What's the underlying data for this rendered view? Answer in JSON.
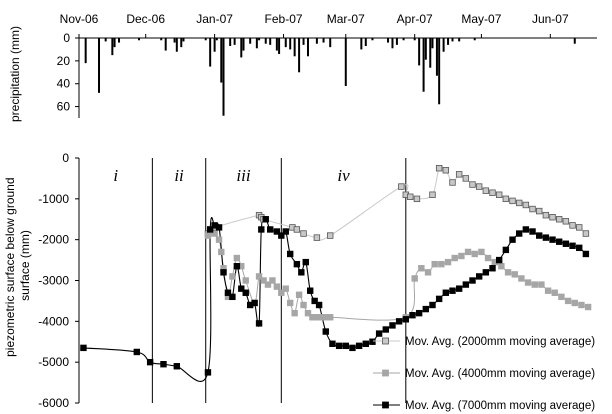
{
  "chart_data": [
    {
      "type": "bar",
      "ylabel": "precipitation (mm)",
      "ylim": [
        0,
        70
      ],
      "y_inverted": true,
      "yticks": [
        "0",
        "20",
        "40",
        "60"
      ],
      "x_months": [
        "Nov-06",
        "Dec-06",
        "Jan-07",
        "Feb-07",
        "Mar-07",
        "Apr-07",
        "May-07",
        "Jun-07"
      ],
      "xlim": [
        "2006-11-01",
        "2007-06-22"
      ],
      "grid": false,
      "bars": {
        "dates": [
          "2006-11-04",
          "2006-11-10",
          "2006-11-13",
          "2006-11-16",
          "2006-11-17",
          "2006-11-19",
          "2006-11-28",
          "2006-12-08",
          "2006-12-10",
          "2006-12-14",
          "2006-12-15",
          "2006-12-17",
          "2006-12-18",
          "2006-12-28",
          "2006-12-30",
          "2007-01-01",
          "2007-01-02",
          "2007-01-04",
          "2007-01-05",
          "2007-01-08",
          "2007-01-10",
          "2007-01-13",
          "2007-01-14",
          "2007-01-17",
          "2007-01-20",
          "2007-01-21",
          "2007-01-24",
          "2007-01-26",
          "2007-01-29",
          "2007-01-30",
          "2007-02-02",
          "2007-02-04",
          "2007-02-06",
          "2007-02-08",
          "2007-02-10",
          "2007-02-12",
          "2007-02-16",
          "2007-02-19",
          "2007-02-22",
          "2007-03-01",
          "2007-03-08",
          "2007-03-10",
          "2007-03-13",
          "2007-03-20",
          "2007-03-22",
          "2007-03-24",
          "2007-03-27",
          "2007-04-01",
          "2007-04-03",
          "2007-04-05",
          "2007-04-06",
          "2007-04-08",
          "2007-04-09",
          "2007-04-11",
          "2007-04-12",
          "2007-04-14",
          "2007-04-16",
          "2007-04-18",
          "2007-04-21",
          "2007-04-28",
          "2007-06-12"
        ],
        "values": [
          22,
          48,
          3,
          15,
          8,
          4,
          2,
          2,
          11,
          4,
          12,
          8,
          3,
          2,
          25,
          12,
          2,
          39,
          68,
          7,
          6,
          17,
          11,
          5,
          9,
          2,
          5,
          6,
          11,
          14,
          8,
          10,
          16,
          30,
          6,
          16,
          5,
          4,
          8,
          42,
          10,
          7,
          2,
          4,
          9,
          6,
          2,
          2,
          24,
          47,
          19,
          26,
          9,
          33,
          58,
          12,
          6,
          3,
          3,
          2,
          5
        ]
      }
    },
    {
      "type": "scatter",
      "ylabel": "piezometric  surface below ground surface (mm)",
      "ylim": [
        -6000,
        0
      ],
      "yticks": [
        "0",
        "-1000",
        "-2000",
        "-3000",
        "-4000",
        "-5000",
        "-6000"
      ],
      "xlim": [
        "2006-11-01",
        "2007-06-22"
      ],
      "grid": false,
      "periods": [
        {
          "label": "i",
          "start": "2006-11-01",
          "end": "2006-12-04"
        },
        {
          "label": "ii",
          "start": "2006-12-04",
          "end": "2006-12-28"
        },
        {
          "label": "iii",
          "start": "2006-12-28",
          "end": "2007-01-31"
        },
        {
          "label": "iv",
          "start": "2007-01-31",
          "end": "2007-03-28"
        }
      ],
      "legend": [
        "Mov. Avg. (2000mm moving average)",
        "Mov. Avg. (4000mm moving average)",
        "Mov. Avg. (7000mm moving average)"
      ],
      "legend_position": "bottom-right",
      "series": [
        {
          "color": "#c8c8c8",
          "edge": "#555555",
          "line_color": "#c8c8c8",
          "x": [
            "2006-12-29",
            "2006-12-30",
            "2007-01-01",
            "2007-01-21",
            "2007-01-22",
            "2007-01-23",
            "2007-02-05",
            "2007-02-07",
            "2007-02-10",
            "2007-02-16",
            "2007-02-22",
            "2007-03-26",
            "2007-03-28",
            "2007-03-30",
            "2007-04-02",
            "2007-04-09",
            "2007-04-12",
            "2007-04-15",
            "2007-04-18",
            "2007-04-21",
            "2007-04-24",
            "2007-04-27",
            "2007-04-30",
            "2007-05-03",
            "2007-05-06",
            "2007-05-09",
            "2007-05-12",
            "2007-05-15",
            "2007-05-18",
            "2007-05-21",
            "2007-05-24",
            "2007-05-27",
            "2007-05-30",
            "2007-06-02",
            "2007-06-05",
            "2007-06-08",
            "2007-06-11",
            "2007-06-14",
            "2007-06-17"
          ],
          "y": [
            -1850,
            -1750,
            -1700,
            -1400,
            -1450,
            -1500,
            -1700,
            -1750,
            -1850,
            -1950,
            -1900,
            -700,
            -900,
            -950,
            -1000,
            -900,
            -250,
            -300,
            -600,
            -400,
            -500,
            -650,
            -700,
            -800,
            -850,
            -900,
            -1000,
            -1050,
            -1100,
            -1150,
            -1250,
            -1300,
            -1400,
            -1450,
            -1500,
            -1550,
            -1650,
            -1700,
            -1850
          ]
        },
        {
          "color": "#a6a6a6",
          "edge": "#a6a6a6",
          "line_color": "#a6a6a6",
          "x": [
            "2006-12-29",
            "2006-12-30",
            "2007-01-01",
            "2007-01-03",
            "2007-01-04",
            "2007-01-05",
            "2007-01-07",
            "2007-01-09",
            "2007-01-11",
            "2007-01-13",
            "2007-01-15",
            "2007-01-19",
            "2007-01-21",
            "2007-01-23",
            "2007-01-25",
            "2007-01-27",
            "2007-01-29",
            "2007-01-31",
            "2007-02-02",
            "2007-02-04",
            "2007-02-06",
            "2007-02-08",
            "2007-02-10",
            "2007-02-12",
            "2007-02-14",
            "2007-02-16",
            "2007-02-18",
            "2007-02-20",
            "2007-02-22",
            "2007-03-28",
            "2007-04-01",
            "2007-04-04",
            "2007-04-07",
            "2007-04-10",
            "2007-04-13",
            "2007-04-16",
            "2007-04-19",
            "2007-04-22",
            "2007-04-25",
            "2007-04-28",
            "2007-05-01",
            "2007-05-04",
            "2007-05-07",
            "2007-05-10",
            "2007-05-13",
            "2007-05-16",
            "2007-05-19",
            "2007-05-22",
            "2007-05-25",
            "2007-05-28",
            "2007-05-31",
            "2007-06-03",
            "2007-06-06",
            "2007-06-09",
            "2007-06-12",
            "2007-06-15",
            "2007-06-18"
          ],
          "y": [
            -1900,
            -1800,
            -1850,
            -2000,
            -2300,
            -2700,
            -3400,
            -2900,
            -2450,
            -2650,
            -3000,
            -3550,
            -2900,
            -3000,
            -3100,
            -3000,
            -3150,
            -3300,
            -3200,
            -3550,
            -3800,
            -3350,
            -3600,
            -3800,
            -3900,
            -3900,
            -3900,
            -3900,
            -3900,
            -3900,
            -2950,
            -2700,
            -2800,
            -2600,
            -2600,
            -2550,
            -2450,
            -2400,
            -2300,
            -2350,
            -2300,
            -2450,
            -2550,
            -2650,
            -2800,
            -2850,
            -2950,
            -3050,
            -3100,
            -3100,
            -3250,
            -3300,
            -3400,
            -3500,
            -3550,
            -3600,
            -3650
          ]
        },
        {
          "color": "#000000",
          "edge": "#000000",
          "line_color": "#000000",
          "x": [
            "2006-11-03",
            "2006-11-27",
            "2006-12-03",
            "2006-12-09",
            "2006-12-15",
            "2006-12-29",
            "2006-12-30",
            "2007-01-01",
            "2007-01-03",
            "2007-01-05",
            "2007-01-07",
            "2007-01-09",
            "2007-01-11",
            "2007-01-13",
            "2007-01-15",
            "2007-01-17",
            "2007-01-19",
            "2007-01-21",
            "2007-01-22",
            "2007-01-24",
            "2007-01-26",
            "2007-01-29",
            "2007-01-31",
            "2007-02-02",
            "2007-02-04",
            "2007-02-07",
            "2007-02-09",
            "2007-02-11",
            "2007-02-13",
            "2007-02-15",
            "2007-02-17",
            "2007-02-20",
            "2007-02-23",
            "2007-02-26",
            "2007-03-01",
            "2007-03-04",
            "2007-03-07",
            "2007-03-10",
            "2007-03-13",
            "2007-03-16",
            "2007-03-19",
            "2007-03-22",
            "2007-03-25",
            "2007-03-28",
            "2007-03-31",
            "2007-04-03",
            "2007-04-06",
            "2007-04-09",
            "2007-04-12",
            "2007-04-15",
            "2007-04-18",
            "2007-04-21",
            "2007-04-24",
            "2007-04-27",
            "2007-04-30",
            "2007-05-03",
            "2007-05-06",
            "2007-05-09",
            "2007-05-12",
            "2007-05-15",
            "2007-05-18",
            "2007-05-21",
            "2007-05-24",
            "2007-05-27",
            "2007-05-30",
            "2007-06-02",
            "2007-06-05",
            "2007-06-08",
            "2007-06-11",
            "2007-06-14",
            "2007-06-17"
          ],
          "y": [
            -4650,
            -4750,
            -5000,
            -5050,
            -5100,
            -5250,
            -1750,
            -1650,
            -1700,
            -2800,
            -3300,
            -3400,
            -2650,
            -3200,
            -3300,
            -3600,
            -3550,
            -4050,
            -1750,
            -1500,
            -1750,
            -1800,
            -1900,
            -1800,
            -2350,
            -2600,
            -2800,
            -2550,
            -3250,
            -3500,
            -3600,
            -4250,
            -4550,
            -4600,
            -4600,
            -4650,
            -4600,
            -4550,
            -4500,
            -4300,
            -4200,
            -4100,
            -4000,
            -3950,
            -3850,
            -3800,
            -3700,
            -3600,
            -3450,
            -3300,
            -3250,
            -3200,
            -3100,
            -3000,
            -2900,
            -2800,
            -2700,
            -2500,
            -2250,
            -2000,
            -1850,
            -1750,
            -1800,
            -1900,
            -1950,
            -2000,
            -2050,
            -2100,
            -2150,
            -2200,
            -2350
          ]
        }
      ]
    }
  ]
}
